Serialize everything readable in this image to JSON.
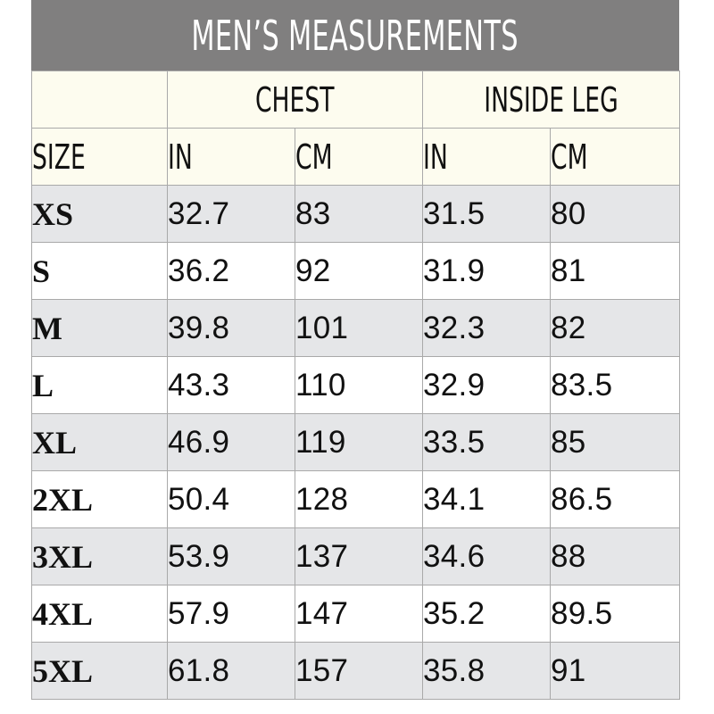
{
  "title": "MEN’S MEASUREMENTS",
  "group_headers": {
    "chest": "CHEST",
    "inside_leg": "INSIDE LEG"
  },
  "column_headers": {
    "size": "SIZE",
    "chest_in": "IN",
    "chest_cm": "CM",
    "leg_in": "IN",
    "leg_cm": "CM"
  },
  "rows": [
    {
      "size": "XS",
      "chest_in": "32.7",
      "chest_cm": "83",
      "leg_in": "31.5",
      "leg_cm": "80"
    },
    {
      "size": "S",
      "chest_in": "36.2",
      "chest_cm": "92",
      "leg_in": "31.9",
      "leg_cm": "81"
    },
    {
      "size": "M",
      "chest_in": "39.8",
      "chest_cm": "101",
      "leg_in": "32.3",
      "leg_cm": "82"
    },
    {
      "size": "L",
      "chest_in": "43.3",
      "chest_cm": "110",
      "leg_in": "32.9",
      "leg_cm": "83.5"
    },
    {
      "size": "XL",
      "chest_in": "46.9",
      "chest_cm": "119",
      "leg_in": "33.5",
      "leg_cm": "85"
    },
    {
      "size": "2XL",
      "chest_in": "50.4",
      "chest_cm": "128",
      "leg_in": "34.1",
      "leg_cm": "86.5"
    },
    {
      "size": "3XL",
      "chest_in": "53.9",
      "chest_cm": "137",
      "leg_in": "34.6",
      "leg_cm": "88"
    },
    {
      "size": "4XL",
      "chest_in": "57.9",
      "chest_cm": "147",
      "leg_in": "35.2",
      "leg_cm": "89.5"
    },
    {
      "size": "5XL",
      "chest_in": "61.8",
      "chest_cm": "157",
      "leg_in": "35.8",
      "leg_cm": "91"
    }
  ],
  "colors": {
    "title_bar": "#807f7f",
    "header_bg": "#fdfcef",
    "row_grey": "#e5e6e8",
    "row_white": "#ffffff",
    "grid_line": "#a9a9a9"
  }
}
